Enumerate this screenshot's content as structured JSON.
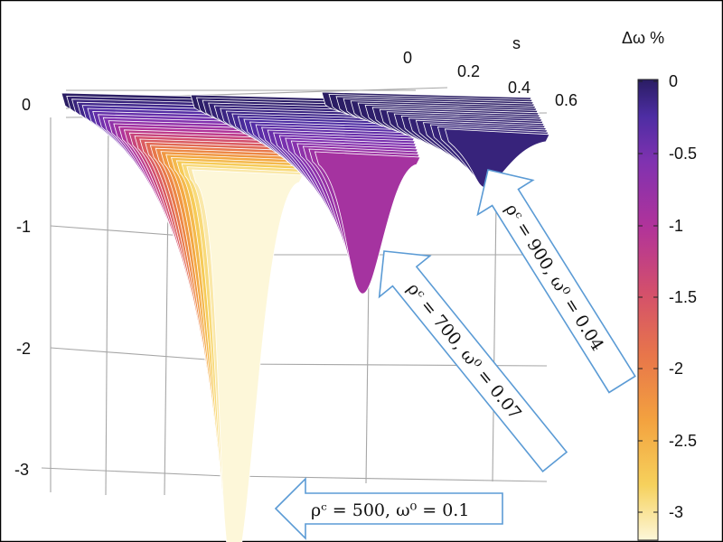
{
  "chart_data": {
    "type": "surface-3d",
    "axes": {
      "z": {
        "label": "",
        "ticks": [
          "0",
          "-1",
          "-2",
          "-3"
        ]
      },
      "s": {
        "label": "s",
        "ticks": [
          "0",
          "0.2",
          "0.4",
          "0.6"
        ]
      }
    },
    "colorbar": {
      "label": "Δω  %",
      "ticks": [
        "0",
        "-0.5",
        "-1",
        "-1.5",
        "-2",
        "-2.5",
        "-3"
      ],
      "range": [
        -3.2,
        0
      ],
      "colors": [
        "#fdf7d9",
        "#f6d15c",
        "#f3a23f",
        "#e8764a",
        "#d34f6c",
        "#b1339a",
        "#8032b0",
        "#4d2da3",
        "#2a1d63"
      ]
    },
    "series": [
      {
        "annotation": "ρᶜ = 500, ω⁰ = 0.1",
        "min_value": -3.2
      },
      {
        "annotation": "ρᶜ = 700, ω⁰ = 0.07",
        "min_value": -1.1
      },
      {
        "annotation": "ρᶜ = 900, ω⁰ = 0.04",
        "min_value": -0.15
      }
    ],
    "grid": true
  }
}
